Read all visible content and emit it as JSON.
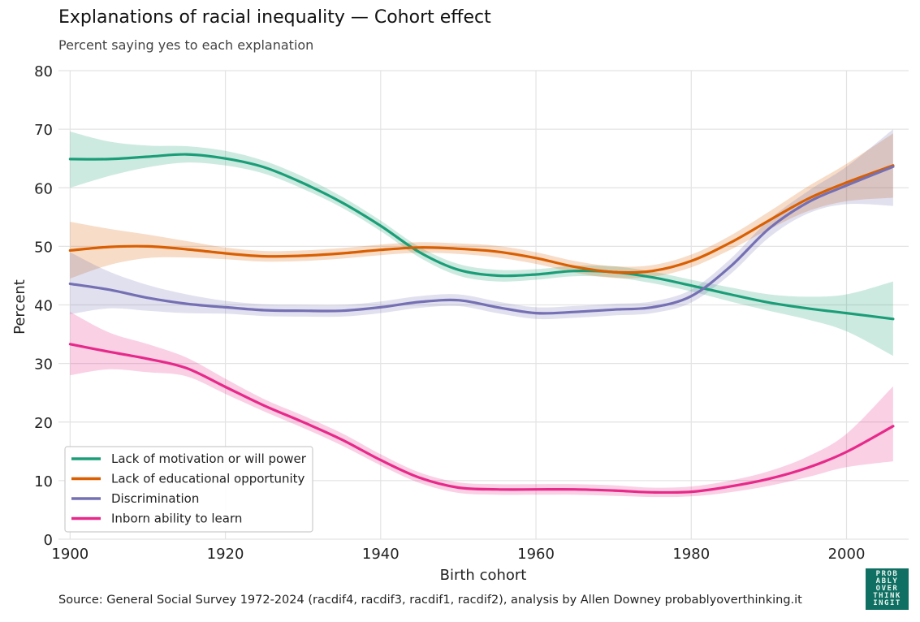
{
  "title": "Explanations of racial inequality — Cohort effect",
  "subtitle": "Percent saying yes to each explanation",
  "source": "Source: General Social Survey 1972-2024 (racdif4, racdif3, racdif1, racdif2), analysis by Allen Downey probablyoverthinking.it",
  "logo_text": "PROB\nABLY\nOVER\nTHINK\nINGIT",
  "chart_data": {
    "type": "line",
    "xlabel": "Birth cohort",
    "ylabel": "Percent",
    "xlim": [
      1898.5,
      2008
    ],
    "ylim": [
      0,
      80
    ],
    "xticks": [
      1900,
      1920,
      1940,
      1960,
      1980,
      2000
    ],
    "yticks": [
      0,
      10,
      20,
      30,
      40,
      50,
      60,
      70,
      80
    ],
    "grid": true,
    "legend_position": "bottom-left",
    "series": [
      {
        "name": "Lack of motivation or will power",
        "color": "#1b9e77",
        "x": [
          1900,
          1905,
          1910,
          1915,
          1920,
          1925,
          1930,
          1935,
          1940,
          1945,
          1950,
          1955,
          1960,
          1965,
          1970,
          1975,
          1980,
          1985,
          1990,
          1995,
          2000,
          2006
        ],
        "y": [
          64.9,
          64.9,
          65.3,
          65.7,
          65.0,
          63.5,
          60.8,
          57.5,
          53.5,
          49.0,
          46.0,
          45.0,
          45.2,
          45.8,
          45.6,
          44.7,
          43.3,
          41.8,
          40.4,
          39.4,
          38.6,
          37.6
        ],
        "lower": [
          60.0,
          62.0,
          63.5,
          64.3,
          63.8,
          62.4,
          59.8,
          56.6,
          52.6,
          48.1,
          45.0,
          44.0,
          44.3,
          44.9,
          44.7,
          43.7,
          42.3,
          40.6,
          39.0,
          37.5,
          35.5,
          31.3
        ],
        "upper": [
          69.6,
          67.9,
          67.2,
          67.1,
          66.3,
          64.6,
          61.9,
          58.5,
          54.4,
          49.9,
          47.0,
          46.0,
          46.1,
          46.7,
          46.6,
          45.7,
          44.3,
          43.0,
          41.8,
          41.4,
          41.8,
          44.0
        ]
      },
      {
        "name": "Lack of educational opportunity",
        "color": "#d95f02",
        "x": [
          1900,
          1905,
          1910,
          1915,
          1920,
          1925,
          1930,
          1935,
          1940,
          1945,
          1950,
          1955,
          1960,
          1965,
          1970,
          1975,
          1980,
          1985,
          1990,
          1995,
          2000,
          2006
        ],
        "y": [
          49.3,
          49.9,
          50.0,
          49.5,
          48.8,
          48.3,
          48.4,
          48.8,
          49.4,
          49.8,
          49.6,
          49.1,
          48.0,
          46.5,
          45.6,
          45.8,
          47.5,
          50.6,
          54.4,
          58.1,
          60.9,
          63.8
        ],
        "lower": [
          44.5,
          46.8,
          48.0,
          48.1,
          47.8,
          47.4,
          47.5,
          47.9,
          48.5,
          48.9,
          48.7,
          48.1,
          47.0,
          45.5,
          44.6,
          44.8,
          46.4,
          49.4,
          52.9,
          56.0,
          57.7,
          58.3
        ],
        "upper": [
          54.2,
          53.0,
          52.0,
          50.9,
          49.8,
          49.2,
          49.3,
          49.7,
          50.3,
          50.7,
          50.5,
          50.1,
          49.0,
          47.5,
          46.6,
          46.8,
          48.6,
          51.8,
          55.9,
          60.2,
          64.1,
          69.3
        ]
      },
      {
        "name": "Discrimination",
        "color": "#7570b3",
        "x": [
          1900,
          1905,
          1910,
          1915,
          1920,
          1925,
          1930,
          1935,
          1940,
          1945,
          1950,
          1955,
          1960,
          1965,
          1970,
          1975,
          1980,
          1985,
          1990,
          1995,
          2000,
          2006
        ],
        "y": [
          43.6,
          42.6,
          41.2,
          40.2,
          39.6,
          39.1,
          39.0,
          39.0,
          39.6,
          40.5,
          40.8,
          39.6,
          38.6,
          38.8,
          39.2,
          39.6,
          41.5,
          46.5,
          53.0,
          57.5,
          60.4,
          63.6
        ],
        "lower": [
          38.4,
          39.4,
          39.0,
          38.6,
          38.5,
          38.1,
          38.0,
          38.0,
          38.6,
          39.5,
          39.8,
          38.6,
          37.6,
          37.8,
          38.2,
          38.6,
          40.4,
          45.2,
          51.5,
          55.6,
          57.2,
          56.9
        ],
        "upper": [
          49.0,
          45.7,
          43.4,
          41.8,
          40.7,
          40.1,
          40.0,
          40.0,
          40.6,
          41.5,
          41.8,
          40.6,
          39.6,
          39.8,
          40.2,
          40.6,
          42.6,
          47.8,
          54.5,
          59.4,
          63.6,
          70.0
        ]
      },
      {
        "name": "Inborn ability to learn",
        "color": "#e7298a",
        "x": [
          1900,
          1905,
          1910,
          1915,
          1920,
          1925,
          1930,
          1935,
          1940,
          1945,
          1950,
          1955,
          1960,
          1965,
          1970,
          1975,
          1980,
          1985,
          1990,
          1995,
          2000,
          2006
        ],
        "y": [
          33.3,
          32.0,
          30.8,
          29.2,
          26.0,
          22.8,
          20.0,
          17.0,
          13.5,
          10.5,
          8.8,
          8.5,
          8.5,
          8.5,
          8.3,
          8.0,
          8.1,
          9.0,
          10.3,
          12.2,
          14.9,
          19.3
        ],
        "lower": [
          28.0,
          29.0,
          28.5,
          27.8,
          24.8,
          21.8,
          19.0,
          16.0,
          12.6,
          9.6,
          7.9,
          7.6,
          7.6,
          7.6,
          7.4,
          7.2,
          7.3,
          8.0,
          9.1,
          10.6,
          12.3,
          13.3
        ],
        "upper": [
          38.8,
          35.3,
          33.3,
          31.0,
          27.4,
          23.9,
          21.1,
          18.1,
          14.5,
          11.4,
          9.7,
          9.4,
          9.4,
          9.4,
          9.2,
          8.8,
          9.0,
          10.0,
          11.6,
          14.1,
          18.0,
          26.1
        ]
      }
    ]
  }
}
